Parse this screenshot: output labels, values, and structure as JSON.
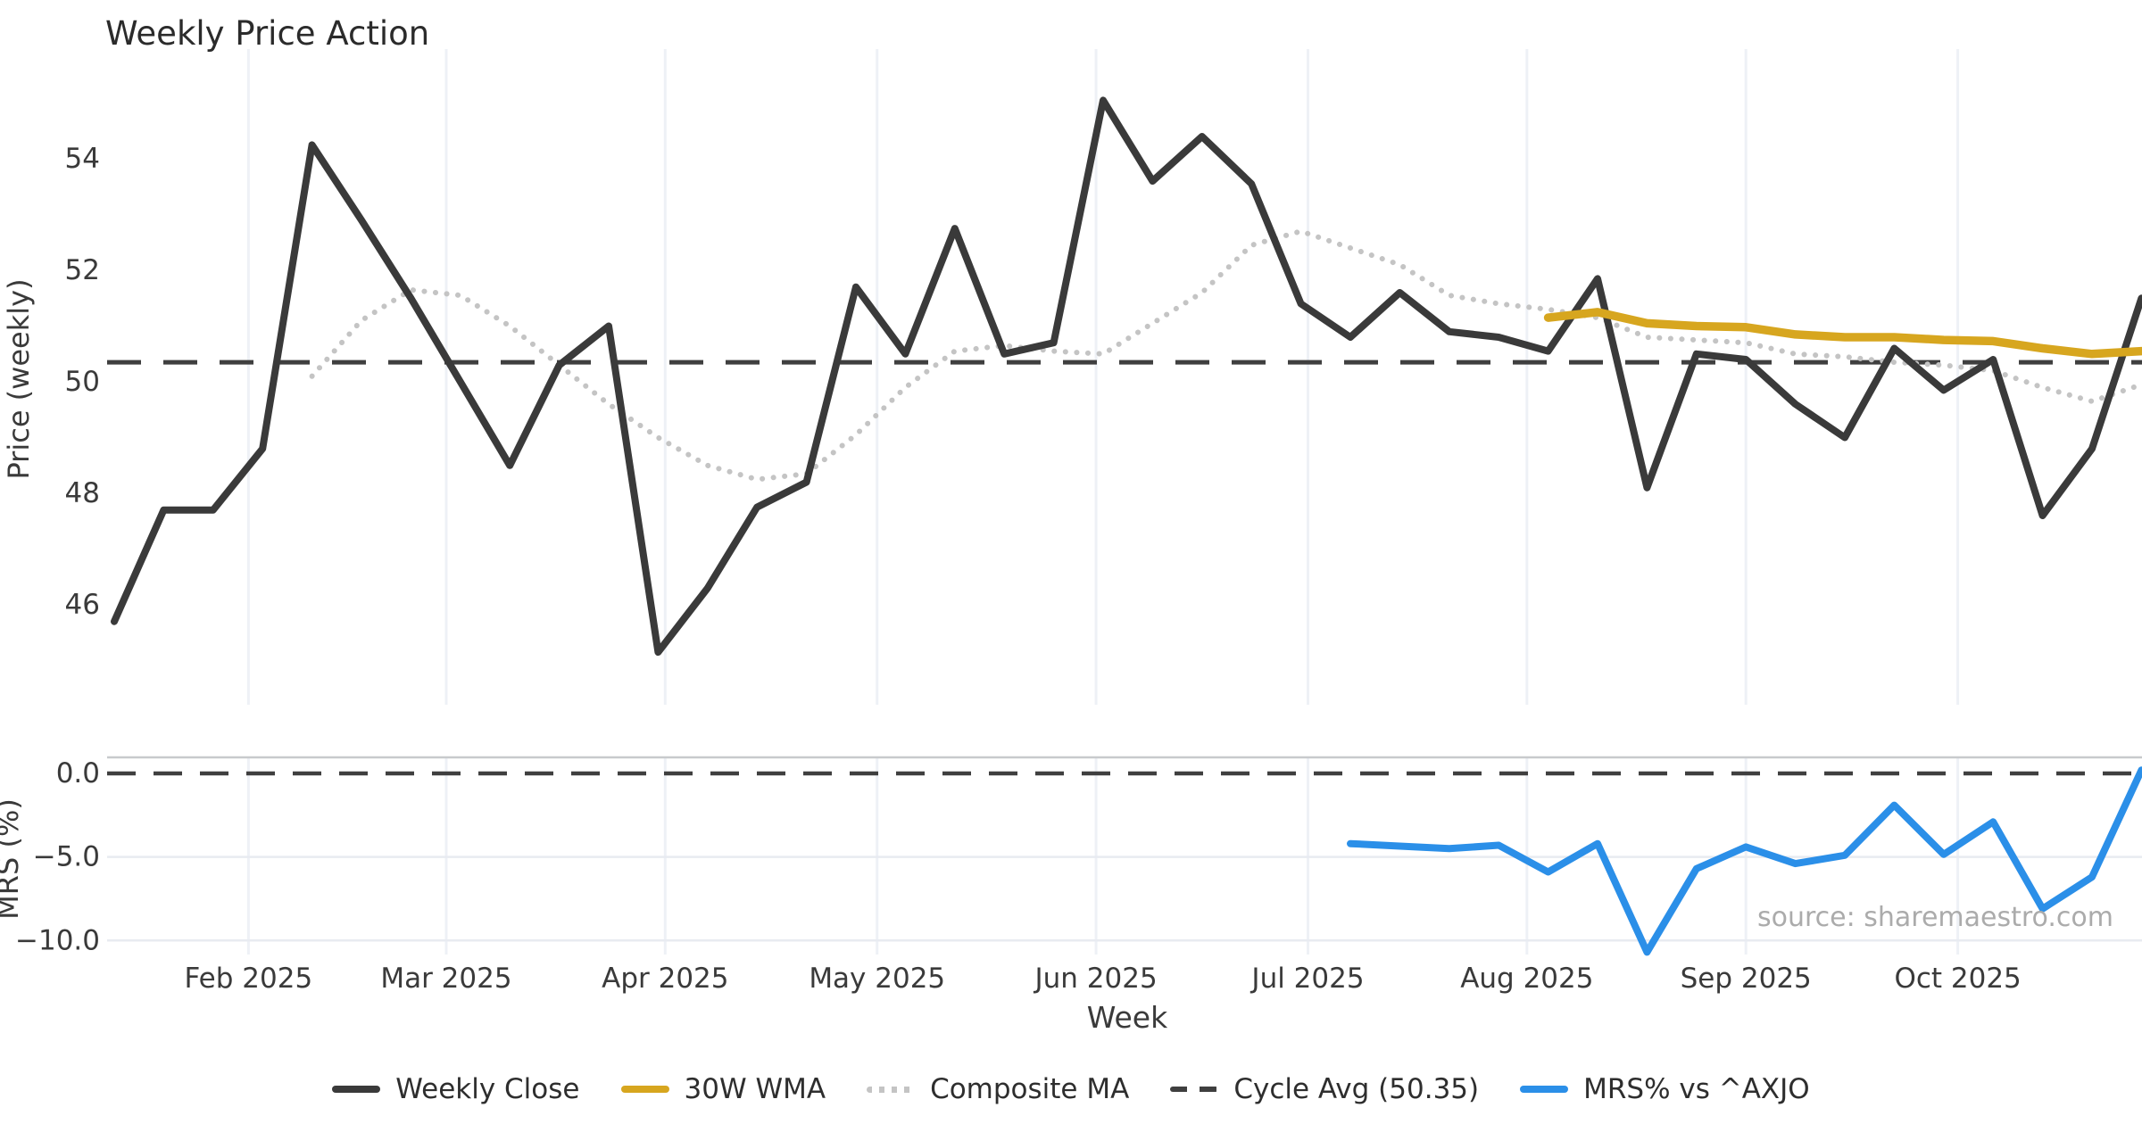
{
  "title": "Weekly Price Action",
  "source": "source: sharemaestro.com",
  "colors": {
    "weekly_close": "#3a3a3a",
    "wma_30w": "#d7a61f",
    "composite_ma": "#c4c4c4",
    "cycle_avg": "#3f3f3f",
    "mrs": "#2b8fe8",
    "tick_text": "#3a3a3a",
    "title_text": "#2b2b2b",
    "source_text": "#ababab",
    "grid_vertical": "#eef1f6",
    "grid_horizontal": "#e8ebf1",
    "panel_spine": "#c8cacc"
  },
  "axes": {
    "price_label": "Price (weekly)",
    "mrs_label": "MRS (%)",
    "x_label": "Week",
    "price_ticks": [
      {
        "label": "54",
        "value": 54
      },
      {
        "label": "52",
        "value": 52
      },
      {
        "label": "50",
        "value": 50
      },
      {
        "label": "48",
        "value": 48
      },
      {
        "label": "46",
        "value": 46
      }
    ],
    "mrs_ticks": [
      {
        "label": "0.0",
        "value": 0
      },
      {
        "label": "−5.0",
        "value": -5
      },
      {
        "label": "−10.0",
        "value": -10
      }
    ],
    "months": [
      {
        "label": "Feb 2025",
        "day_offset": 19
      },
      {
        "label": "Mar 2025",
        "day_offset": 47
      },
      {
        "label": "Apr 2025",
        "day_offset": 78
      },
      {
        "label": "May 2025",
        "day_offset": 108
      },
      {
        "label": "Jun 2025",
        "day_offset": 139
      },
      {
        "label": "Jul 2025",
        "day_offset": 169
      },
      {
        "label": "Aug 2025",
        "day_offset": 200
      },
      {
        "label": "Sep 2025",
        "day_offset": 231
      },
      {
        "label": "Oct 2025",
        "day_offset": 261
      }
    ]
  },
  "legend": [
    {
      "label": "Weekly Close",
      "style": "solid",
      "color": "#3a3a3a"
    },
    {
      "label": "30W WMA",
      "style": "solid",
      "color": "#d7a61f"
    },
    {
      "label": "Composite MA",
      "style": "dotted",
      "color": "#c4c4c4"
    },
    {
      "label": "Cycle Avg (50.35)",
      "style": "dashed",
      "color": "#3f3f3f"
    },
    {
      "label": "MRS% vs ^AXJO",
      "style": "solid",
      "color": "#2b8fe8"
    }
  ],
  "chart_data": [
    {
      "type": "line",
      "title": "Weekly Price Action",
      "xlabel": "Week",
      "ylabel": "Price (weekly)",
      "ylim": [
        44.9,
        55.9
      ],
      "grid": "vertical-only",
      "x_weeks": [
        "2025-01-13",
        "2025-01-20",
        "2025-01-27",
        "2025-02-03",
        "2025-02-10",
        "2025-02-17",
        "2025-02-24",
        "2025-03-03",
        "2025-03-10",
        "2025-03-17",
        "2025-03-24",
        "2025-03-31",
        "2025-04-07",
        "2025-04-14",
        "2025-04-21",
        "2025-04-28",
        "2025-05-05",
        "2025-05-12",
        "2025-05-19",
        "2025-05-26",
        "2025-06-02",
        "2025-06-09",
        "2025-06-16",
        "2025-06-23",
        "2025-06-30",
        "2025-07-07",
        "2025-07-14",
        "2025-07-21",
        "2025-07-28",
        "2025-08-04",
        "2025-08-11",
        "2025-08-18",
        "2025-08-25",
        "2025-09-01",
        "2025-09-08",
        "2025-09-15",
        "2025-09-22",
        "2025-09-29",
        "2025-10-06",
        "2025-10-13",
        "2025-10-20",
        "2025-10-27"
      ],
      "series": [
        {
          "name": "Weekly Close",
          "style": "solid",
          "start_index": 0,
          "values": [
            45.7,
            47.7,
            47.7,
            48.8,
            54.25,
            52.9,
            51.5,
            50.0,
            48.5,
            50.3,
            51.0,
            45.15,
            46.3,
            47.75,
            48.2,
            51.7,
            50.5,
            52.75,
            50.5,
            50.7,
            55.05,
            53.6,
            54.4,
            53.55,
            51.4,
            50.8,
            51.6,
            50.9,
            50.8,
            50.55,
            51.85,
            48.1,
            50.5,
            50.4,
            49.6,
            49.0,
            50.6,
            49.85,
            50.4,
            47.6,
            48.8,
            51.5
          ]
        },
        {
          "name": "30W WMA",
          "style": "solid",
          "start_index": 29,
          "values": [
            51.15,
            51.25,
            51.05,
            51.0,
            50.98,
            50.85,
            50.8,
            50.8,
            50.75,
            50.73,
            50.6,
            50.5,
            50.55
          ]
        },
        {
          "name": "Composite MA",
          "style": "dotted",
          "start_index": 4,
          "values": [
            50.1,
            51.1,
            51.65,
            51.55,
            51.0,
            50.3,
            49.6,
            49.0,
            48.5,
            48.25,
            48.35,
            49.05,
            49.9,
            50.55,
            50.65,
            50.55,
            50.5,
            51.05,
            51.6,
            52.45,
            52.7,
            52.4,
            52.1,
            51.55,
            51.4,
            51.3,
            51.15,
            50.8,
            50.75,
            50.7,
            50.5,
            50.45,
            50.35,
            50.3,
            50.2,
            49.9,
            49.65,
            49.95
          ]
        },
        {
          "name": "Cycle Avg (50.35)",
          "style": "dashed-horizontal",
          "value": 50.35
        }
      ]
    },
    {
      "type": "line",
      "xlabel": "Week",
      "ylabel": "MRS (%)",
      "ylim": [
        -11.2,
        1.0
      ],
      "grid": "both",
      "aligned_to": "chart_data[0].x_weeks",
      "series": [
        {
          "name": "MRS% vs ^AXJO",
          "style": "solid",
          "start_index": 25,
          "values": [
            -4.2,
            -4.35,
            -4.5,
            -4.3,
            -5.9,
            -4.2,
            -10.7,
            -5.7,
            -4.4,
            -5.4,
            -4.9,
            -1.9,
            -4.85,
            -2.9,
            -8.1,
            -6.2,
            0.2
          ]
        },
        {
          "name": "Zero line",
          "style": "dashed-horizontal",
          "value": 0
        }
      ]
    }
  ]
}
